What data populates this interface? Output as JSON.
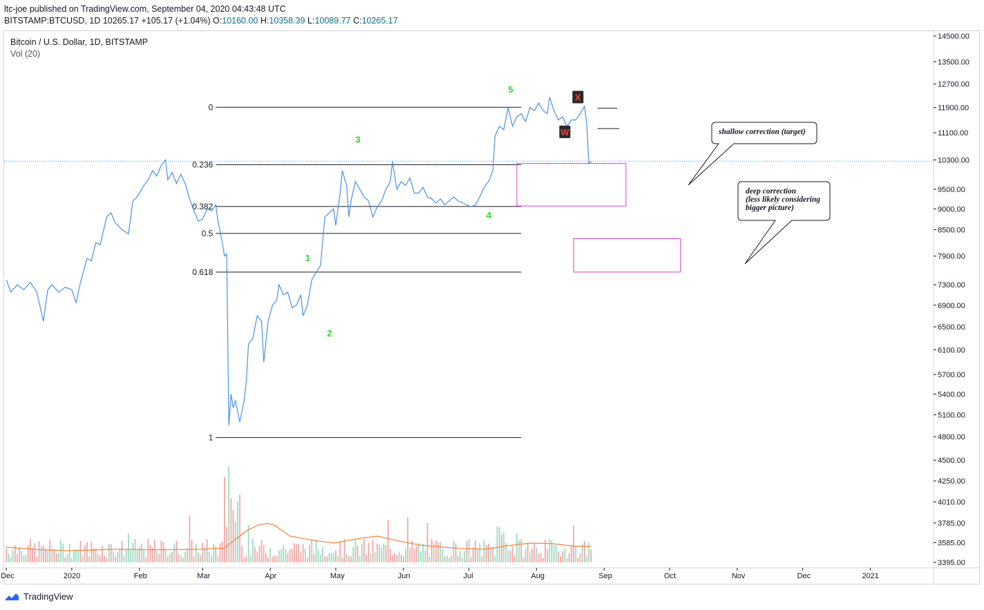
{
  "header": {
    "publisher_line": "ltc-joe published on TradingView.com, September 04, 2020 04:43:48 UTC",
    "symbol": "BITSTAMP:BTCUSD, 1D",
    "last": "10265.17",
    "change": "+105.17 (+1.04%)",
    "o_label": "O:",
    "o_value": "10160.00",
    "h_label": "H:",
    "h_value": "10358.39",
    "l_label": "L:",
    "l_value": "10089.77",
    "c_label": "C:",
    "c_value": "10265.17"
  },
  "legend": {
    "title": "Bitcoin / U.S. Dollar, 1D, BITSTAMP",
    "volume": "Vol (20)"
  },
  "footer": {
    "brand": "TradingView"
  },
  "colors": {
    "price_line": "#4a90e2",
    "vol_up": "#9fd9c0",
    "vol_down": "#f0a7a7",
    "vol_ma": "#f08a4b",
    "fib_line": "#131722",
    "box": "#d63ad6",
    "wave_label": "#22dd22",
    "wx_badge_bg": "#2a2a2a",
    "wx_badge_fg": "#ff3b3b"
  },
  "chart_data": {
    "type": "line",
    "title": "Bitcoin / U.S. Dollar, 1D, BITSTAMP",
    "x_ticks": [
      "Dec",
      "2020",
      "Feb",
      "Mar",
      "Apr",
      "May",
      "Jun",
      "Jul",
      "Aug",
      "Sep",
      "Oct",
      "Nov",
      "Dec",
      "2021"
    ],
    "y_ticks": [
      "14500.00",
      "13500.00",
      "12700.00",
      "11900.00",
      "11100.00",
      "10300.00",
      "9500.00",
      "9000.00",
      "8500.00",
      "7900.00",
      "7300.00",
      "6900.00",
      "6500.00",
      "6100.00",
      "5700.00",
      "5400.00",
      "5100.00",
      "4800.00",
      "4500.00",
      "4250.00",
      "4010.00",
      "3785.00",
      "3585.00",
      "3395.00"
    ],
    "y_scale": "log",
    "ylim": [
      3395,
      14500
    ],
    "last_price": 10265.17,
    "x_day_range": [
      -31,
      395
    ],
    "price_series": {
      "name": "BTCUSD",
      "points": [
        [
          -30,
          7400
        ],
        [
          -28,
          7150
        ],
        [
          -25,
          7300
        ],
        [
          -22,
          7200
        ],
        [
          -19,
          7350
        ],
        [
          -16,
          7150
        ],
        [
          -13,
          6600
        ],
        [
          -11,
          7200
        ],
        [
          -9,
          7300
        ],
        [
          -6,
          7150
        ],
        [
          -3,
          7250
        ],
        [
          0,
          7200
        ],
        [
          2,
          6950
        ],
        [
          4,
          7350
        ],
        [
          7,
          7850
        ],
        [
          9,
          7800
        ],
        [
          11,
          8200
        ],
        [
          13,
          8150
        ],
        [
          16,
          8800
        ],
        [
          18,
          8900
        ],
        [
          20,
          8650
        ],
        [
          23,
          8500
        ],
        [
          26,
          8400
        ],
        [
          28,
          9200
        ],
        [
          30,
          9300
        ],
        [
          33,
          9600
        ],
        [
          35,
          9750
        ],
        [
          37,
          10000
        ],
        [
          39,
          9850
        ],
        [
          41,
          10150
        ],
        [
          43,
          10300
        ],
        [
          44,
          9750
        ],
        [
          46,
          9950
        ],
        [
          48,
          9650
        ],
        [
          50,
          9900
        ],
        [
          52,
          9650
        ],
        [
          54,
          9250
        ],
        [
          56,
          8950
        ],
        [
          58,
          8700
        ],
        [
          60,
          8750
        ],
        [
          62,
          9000
        ],
        [
          64,
          8950
        ],
        [
          66,
          9100
        ],
        [
          67,
          8700
        ],
        [
          69,
          8200
        ],
        [
          70,
          7900
        ],
        [
          71,
          7950
        ],
        [
          72,
          4950
        ],
        [
          73,
          5400
        ],
        [
          74,
          5200
        ],
        [
          75,
          5300
        ],
        [
          77,
          5000
        ],
        [
          79,
          5300
        ],
        [
          80,
          5600
        ],
        [
          81,
          6200
        ],
        [
          83,
          6300
        ],
        [
          85,
          6700
        ],
        [
          87,
          6600
        ],
        [
          88,
          5900
        ],
        [
          90,
          6600
        ],
        [
          92,
          6900
        ],
        [
          94,
          7000
        ],
        [
          95,
          7300
        ],
        [
          97,
          7100
        ],
        [
          99,
          7150
        ],
        [
          101,
          6850
        ],
        [
          103,
          6900
        ],
        [
          105,
          7100
        ],
        [
          106,
          6700
        ],
        [
          108,
          6900
        ],
        [
          110,
          7400
        ],
        [
          112,
          7550
        ],
        [
          114,
          7700
        ],
        [
          116,
          8800
        ],
        [
          118,
          8900
        ],
        [
          120,
          9000
        ],
        [
          121,
          8600
        ],
        [
          123,
          9400
        ],
        [
          124,
          10000
        ],
        [
          126,
          9600
        ],
        [
          127,
          8800
        ],
        [
          128,
          9200
        ],
        [
          130,
          9700
        ],
        [
          132,
          9500
        ],
        [
          134,
          9300
        ],
        [
          136,
          9200
        ],
        [
          138,
          8800
        ],
        [
          140,
          9050
        ],
        [
          142,
          9200
        ],
        [
          144,
          9500
        ],
        [
          146,
          9700
        ],
        [
          147,
          10250
        ],
        [
          149,
          9500
        ],
        [
          151,
          9700
        ],
        [
          153,
          9600
        ],
        [
          155,
          9800
        ],
        [
          157,
          9400
        ],
        [
          159,
          9400
        ],
        [
          161,
          9550
        ],
        [
          163,
          9300
        ],
        [
          165,
          9250
        ],
        [
          167,
          9150
        ],
        [
          169,
          9250
        ],
        [
          171,
          9100
        ],
        [
          173,
          9200
        ],
        [
          175,
          9300
        ],
        [
          177,
          9200
        ],
        [
          179,
          9150
        ],
        [
          181,
          9100
        ],
        [
          183,
          9050
        ],
        [
          185,
          9100
        ],
        [
          187,
          9300
        ],
        [
          189,
          9550
        ],
        [
          191,
          9700
        ],
        [
          193,
          10000
        ],
        [
          194,
          11000
        ],
        [
          196,
          11300
        ],
        [
          198,
          11200
        ],
        [
          200,
          11900
        ],
        [
          202,
          11300
        ],
        [
          204,
          11600
        ],
        [
          206,
          11700
        ],
        [
          208,
          11450
        ],
        [
          210,
          11900
        ],
        [
          212,
          11800
        ],
        [
          214,
          12050
        ],
        [
          216,
          11800
        ],
        [
          218,
          11700
        ],
        [
          219,
          12250
        ],
        [
          221,
          11800
        ],
        [
          223,
          11500
        ],
        [
          225,
          11600
        ],
        [
          227,
          11300
        ],
        [
          229,
          11500
        ],
        [
          231,
          11500
        ],
        [
          233,
          11700
        ],
        [
          235,
          11950
        ],
        [
          236,
          11400
        ],
        [
          237,
          10200
        ],
        [
          238,
          10265
        ]
      ]
    },
    "volume_series": {
      "name": "Vol",
      "ma_name": "Vol (20)",
      "ma_points": [
        [
          -30,
          3540
        ],
        [
          -15,
          3515
        ],
        [
          0,
          3505
        ],
        [
          20,
          3520
        ],
        [
          40,
          3515
        ],
        [
          60,
          3520
        ],
        [
          70,
          3530
        ],
        [
          74,
          3600
        ],
        [
          80,
          3700
        ],
        [
          85,
          3760
        ],
        [
          90,
          3780
        ],
        [
          93,
          3760
        ],
        [
          100,
          3650
        ],
        [
          110,
          3610
        ],
        [
          120,
          3580
        ],
        [
          130,
          3620
        ],
        [
          140,
          3650
        ],
        [
          150,
          3600
        ],
        [
          160,
          3560
        ],
        [
          170,
          3540
        ],
        [
          180,
          3525
        ],
        [
          190,
          3520
        ],
        [
          200,
          3555
        ],
        [
          210,
          3580
        ],
        [
          220,
          3575
        ],
        [
          230,
          3550
        ],
        [
          238,
          3545
        ]
      ]
    },
    "fibonacci": [
      {
        "label": "0",
        "price": 11910
      },
      {
        "label": "0.236",
        "price": 10165
      },
      {
        "label": "0.382",
        "price": 9060
      },
      {
        "label": "0.5",
        "price": 8410
      },
      {
        "label": "0.618",
        "price": 7560
      },
      {
        "label": "1",
        "price": 4790
      }
    ],
    "wave_labels": [
      {
        "text": "1",
        "day": 107,
        "price": 7790
      },
      {
        "text": "2",
        "day": 117,
        "price": 6330
      },
      {
        "text": "3",
        "day": 130,
        "price": 10800
      },
      {
        "text": "4",
        "day": 190,
        "price": 8770
      },
      {
        "text": "5",
        "day": 200,
        "price": 12400
      }
    ],
    "wx_badges": [
      {
        "text": "X",
        "day": 232,
        "price": 12250
      },
      {
        "text": "W",
        "day": 226,
        "price": 11130
      }
    ],
    "short_lines": [
      {
        "day_start": 241,
        "day_end": 250,
        "price": 11880
      },
      {
        "day_start": 241,
        "day_end": 251,
        "price": 11230
      }
    ],
    "target_boxes": [
      {
        "name": "shallow",
        "day_start": 204,
        "day_end": 254,
        "price_top": 10200,
        "price_bottom": 9070
      },
      {
        "name": "deep",
        "day_start": 230,
        "day_end": 279,
        "price_top": 8290,
        "price_bottom": 7560
      }
    ],
    "annotations": [
      {
        "lines": [
          "shallow correction (target)"
        ]
      },
      {
        "lines": [
          "deep correction",
          "(less likely considering",
          "bigger picture)"
        ]
      }
    ]
  }
}
